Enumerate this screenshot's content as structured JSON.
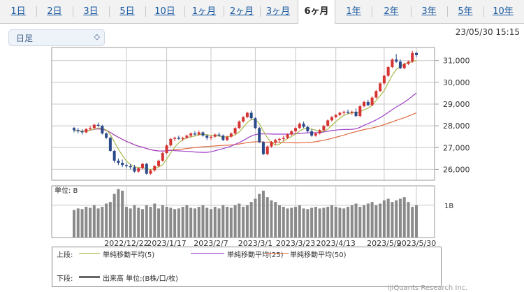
{
  "tabs": [
    "1日",
    "2日",
    "3日",
    "5日",
    "10日",
    "1ヶ月",
    "2ヶ月",
    "3ヶ月",
    "6ヶ月",
    "1年",
    "2年",
    "3年",
    "5年",
    "10年"
  ],
  "active_tab": "6ヶ月",
  "period_select": {
    "value": "日足"
  },
  "timestamp": "23/05/30 15:15",
  "legend": {
    "upper_label": "上段:",
    "lower_label": "下段:",
    "ma5": "単純移動平均(5)",
    "ma25": "単純移動平均(25)",
    "ma50": "単純移動平均(50)",
    "volume": "出来高 単位:(B株/口/枚)"
  },
  "colors": {
    "up": "#d63333",
    "down": "#2a4a8a",
    "ma5": "#a8b84a",
    "ma25": "#a040c8",
    "ma50": "#e06a40",
    "volume": "#8a8a8a",
    "grid": "#c8c8c8"
  },
  "footer": "ijiQuants Research Inc.",
  "chart_data": [
    {
      "type": "candlestick",
      "x_tick_labels": [
        "2022/12/22",
        "2023/1/17",
        "2023/2/7",
        "2023/3/1",
        "2023/3/23",
        "2023/4/13",
        "2023/5/9",
        "2023/5/30"
      ],
      "y_tick_labels": [
        "26,000",
        "27,000",
        "28,000",
        "29,000",
        "30,000",
        "31,000"
      ],
      "ylim": [
        25500,
        31600
      ],
      "grid": true,
      "ohlc": [
        [
          27900,
          27950,
          27700,
          27800
        ],
        [
          27800,
          27900,
          27650,
          27750
        ],
        [
          27750,
          27850,
          27600,
          27700
        ],
        [
          27700,
          27900,
          27650,
          27850
        ],
        [
          27850,
          28000,
          27800,
          27900
        ],
        [
          27900,
          28100,
          27850,
          28050
        ],
        [
          28050,
          28150,
          27950,
          28000
        ],
        [
          28000,
          28050,
          27600,
          27650
        ],
        [
          27650,
          27700,
          27400,
          27450
        ],
        [
          27450,
          27500,
          26800,
          26850
        ],
        [
          26850,
          26900,
          26300,
          26400
        ],
        [
          26400,
          26500,
          26200,
          26300
        ],
        [
          26300,
          26450,
          26100,
          26200
        ],
        [
          26200,
          26300,
          26050,
          26150
        ],
        [
          26150,
          26250,
          26000,
          26100
        ],
        [
          26100,
          26200,
          25850,
          25900
        ],
        [
          25900,
          26100,
          25850,
          26050
        ],
        [
          26050,
          26300,
          26000,
          26250
        ],
        [
          26250,
          26300,
          25750,
          25800
        ],
        [
          25800,
          26000,
          25750,
          25950
        ],
        [
          25950,
          26200,
          25900,
          26150
        ],
        [
          26150,
          26450,
          26100,
          26400
        ],
        [
          26400,
          26800,
          26350,
          26750
        ],
        [
          26750,
          27150,
          26700,
          27100
        ],
        [
          27100,
          27450,
          27050,
          27400
        ],
        [
          27400,
          27500,
          27300,
          27450
        ],
        [
          27450,
          27550,
          27350,
          27400
        ],
        [
          27400,
          27500,
          27300,
          27450
        ],
        [
          27450,
          27600,
          27400,
          27550
        ],
        [
          27550,
          27700,
          27450,
          27650
        ],
        [
          27650,
          27750,
          27550,
          27600
        ],
        [
          27600,
          27800,
          27550,
          27700
        ],
        [
          27700,
          27750,
          27500,
          27550
        ],
        [
          27550,
          27600,
          27350,
          27450
        ],
        [
          27450,
          27550,
          27350,
          27500
        ],
        [
          27500,
          27650,
          27450,
          27600
        ],
        [
          27600,
          27700,
          27500,
          27550
        ],
        [
          27550,
          27600,
          27300,
          27350
        ],
        [
          27350,
          27550,
          27300,
          27500
        ],
        [
          27500,
          27700,
          27450,
          27650
        ],
        [
          27650,
          27950,
          27600,
          27900
        ],
        [
          27900,
          28250,
          27850,
          28200
        ],
        [
          28200,
          28450,
          28150,
          28400
        ],
        [
          28400,
          28650,
          28350,
          28600
        ],
        [
          28600,
          28700,
          28300,
          28350
        ],
        [
          28350,
          28400,
          27850,
          27900
        ],
        [
          27900,
          27950,
          27200,
          27250
        ],
        [
          27250,
          27300,
          26650,
          26700
        ],
        [
          26700,
          27100,
          26650,
          27050
        ],
        [
          27050,
          27300,
          27000,
          27250
        ],
        [
          27250,
          27400,
          27100,
          27350
        ],
        [
          27350,
          27450,
          27250,
          27400
        ],
        [
          27400,
          27550,
          27300,
          27450
        ],
        [
          27450,
          27650,
          27400,
          27600
        ],
        [
          27600,
          27800,
          27550,
          27750
        ],
        [
          27750,
          27950,
          27650,
          27900
        ],
        [
          27900,
          28150,
          27850,
          28100
        ],
        [
          28100,
          28200,
          27900,
          27950
        ],
        [
          27950,
          28000,
          27700,
          27750
        ],
        [
          27750,
          27850,
          27500,
          27550
        ],
        [
          27550,
          27700,
          27500,
          27650
        ],
        [
          27650,
          27850,
          27600,
          27800
        ],
        [
          27800,
          28050,
          27750,
          28000
        ],
        [
          28000,
          28300,
          27950,
          28250
        ],
        [
          28250,
          28450,
          28200,
          28400
        ],
        [
          28400,
          28550,
          28350,
          28500
        ],
        [
          28500,
          28650,
          28450,
          28600
        ],
        [
          28600,
          28700,
          28500,
          28650
        ],
        [
          28650,
          28750,
          28550,
          28600
        ],
        [
          28600,
          28700,
          28500,
          28650
        ],
        [
          28650,
          28800,
          28400,
          28450
        ],
        [
          28450,
          28950,
          28400,
          28900
        ],
        [
          28900,
          29150,
          28850,
          29100
        ],
        [
          29100,
          29200,
          28900,
          28950
        ],
        [
          28950,
          29350,
          28900,
          29300
        ],
        [
          29300,
          29650,
          29250,
          29600
        ],
        [
          29600,
          30000,
          29550,
          29950
        ],
        [
          29950,
          30350,
          29900,
          30300
        ],
        [
          30300,
          30750,
          30250,
          30700
        ],
        [
          30700,
          31100,
          30650,
          31050
        ],
        [
          31050,
          31300,
          30900,
          30950
        ],
        [
          30950,
          31050,
          30600,
          30650
        ],
        [
          30650,
          30900,
          30600,
          30850
        ],
        [
          30850,
          31000,
          30800,
          30950
        ],
        [
          30950,
          31450,
          30900,
          31350
        ],
        [
          31350,
          31400,
          31150,
          31250
        ]
      ]
    },
    {
      "type": "bar",
      "title": "単位: B",
      "y_tick_labels": [
        "1B"
      ],
      "ylim": [
        0,
        1.6
      ],
      "values": [
        0.85,
        0.9,
        0.88,
        0.95,
        0.92,
        1.0,
        0.9,
        0.95,
        1.05,
        1.1,
        1.35,
        1.5,
        1.45,
        0.95,
        0.9,
        1.0,
        0.92,
        0.88,
        1.0,
        0.95,
        1.05,
        0.9,
        1.0,
        0.95,
        0.92,
        0.88,
        0.9,
        0.95,
        1.0,
        0.92,
        0.9,
        0.95,
        1.0,
        0.92,
        0.88,
        0.95,
        0.9,
        1.0,
        0.95,
        0.92,
        1.0,
        1.05,
        0.95,
        1.0,
        1.1,
        1.2,
        1.35,
        1.45,
        1.25,
        1.15,
        1.1,
        1.0,
        0.95,
        0.9,
        0.92,
        0.95,
        1.0,
        0.9,
        0.88,
        0.92,
        0.95,
        0.9,
        0.92,
        0.95,
        1.0,
        0.95,
        0.92,
        0.9,
        0.95,
        1.0,
        1.05,
        0.95,
        1.0,
        1.05,
        1.1,
        1.0,
        1.05,
        1.15,
        1.2,
        1.1,
        1.15,
        1.2,
        1.25,
        1.1,
        0.95,
        1.0
      ]
    }
  ]
}
